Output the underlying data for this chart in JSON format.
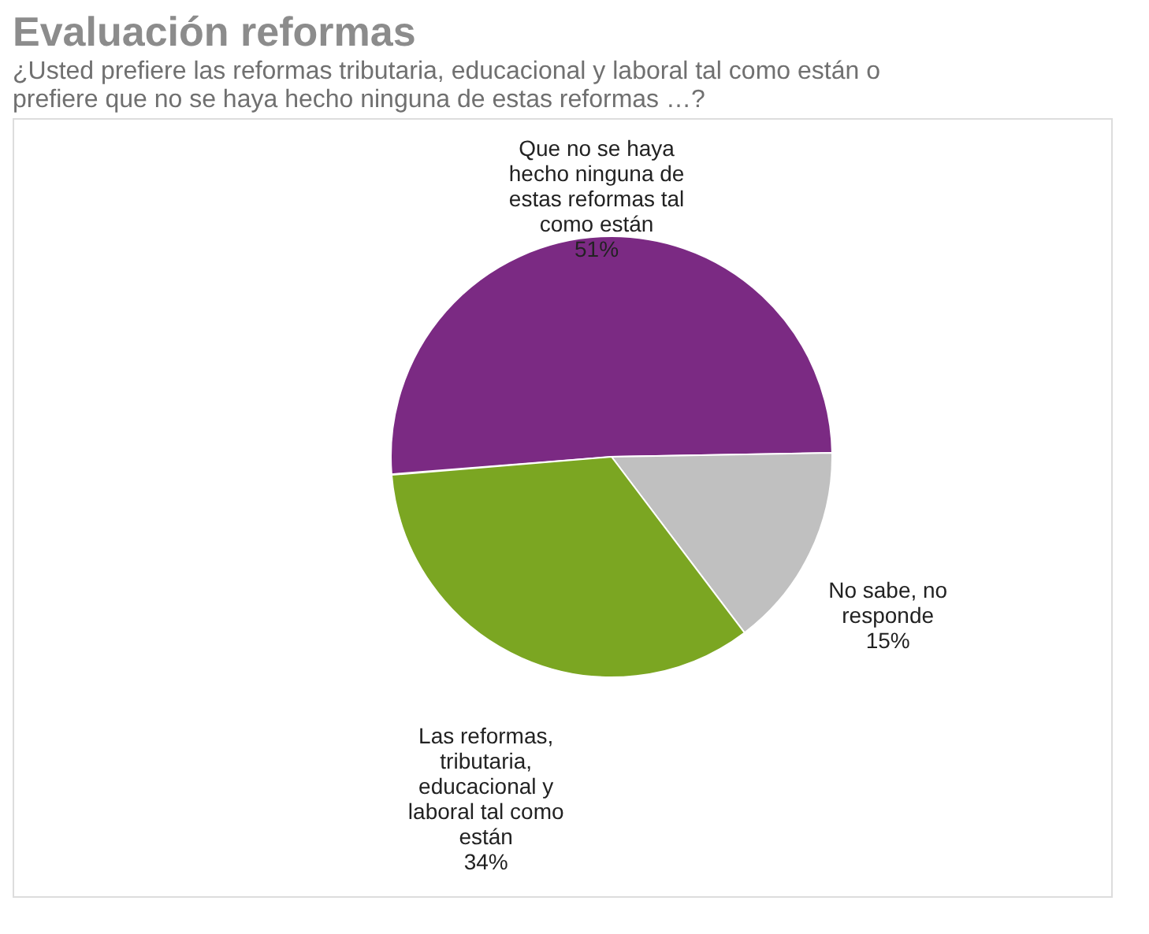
{
  "chart_data": {
    "type": "pie",
    "title": "Evaluación reformas",
    "subtitle": "¿Usted prefiere las reformas tributaria, educacional y laboral tal como están o prefiere que no se haya hecho ninguna de estas reformas …?",
    "categories": [
      "Que no se haya hecho ninguna de estas reformas tal como están",
      "No sabe, no responde",
      "Las reformas, tributaria, educacional y laboral tal como están"
    ],
    "values": [
      51,
      15,
      34
    ],
    "colors": [
      "#7b2a83",
      "#c0c0c0",
      "#7ba622"
    ],
    "value_labels": [
      "51%",
      "15%",
      "34%"
    ],
    "legend": false
  }
}
